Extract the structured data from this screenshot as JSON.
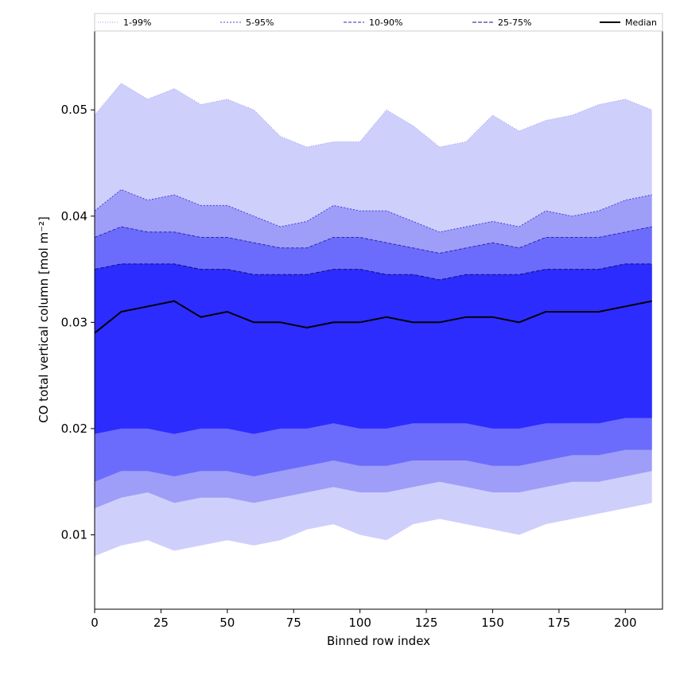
{
  "chart_data": {
    "type": "area",
    "title": "",
    "xlabel": "Binned row index",
    "ylabel": "CO total vertical column [mol m⁻²]",
    "xlim": [
      0,
      214
    ],
    "ylim": [
      0.003,
      0.0575
    ],
    "x_ticks": [
      0,
      25,
      50,
      75,
      100,
      125,
      150,
      175,
      200
    ],
    "x_tick_labels": [
      "0",
      "25",
      "50",
      "75",
      "100",
      "125",
      "150",
      "175",
      "200"
    ],
    "y_ticks": [
      0.01,
      0.02,
      0.03,
      0.04,
      0.05
    ],
    "y_tick_labels": [
      "0.01",
      "0.02",
      "0.03",
      "0.04",
      "0.05"
    ],
    "grid": false,
    "legend_position": "top (above plot, single row)",
    "x_start": 0,
    "x_step": 10,
    "bands": [
      {
        "name": "1-99%",
        "fill": "#cfcffc",
        "line": "#9a9af0",
        "upper": [
          0.0495,
          0.0525,
          0.051,
          0.052,
          0.0505,
          0.051,
          0.05,
          0.0475,
          0.0465,
          0.047,
          0.047,
          0.05,
          0.0485,
          0.0465,
          0.047,
          0.0495,
          0.048,
          0.049,
          0.0495,
          0.0505,
          0.051,
          0.05
        ],
        "lower": [
          0.008,
          0.009,
          0.0095,
          0.0085,
          0.009,
          0.0095,
          0.009,
          0.0095,
          0.0105,
          0.011,
          0.01,
          0.0095,
          0.011,
          0.0115,
          0.011,
          0.0105,
          0.01,
          0.011,
          0.0115,
          0.012,
          0.0125,
          0.013
        ]
      },
      {
        "name": "5-95%",
        "fill": "#9e9ef8",
        "line": "#4040e0",
        "upper": [
          0.0405,
          0.0425,
          0.0415,
          0.042,
          0.041,
          0.041,
          0.04,
          0.039,
          0.0395,
          0.041,
          0.0405,
          0.0405,
          0.0395,
          0.0385,
          0.039,
          0.0395,
          0.039,
          0.0405,
          0.04,
          0.0405,
          0.0415,
          0.042
        ],
        "lower": [
          0.0125,
          0.0135,
          0.014,
          0.013,
          0.0135,
          0.0135,
          0.013,
          0.0135,
          0.014,
          0.0145,
          0.014,
          0.014,
          0.0145,
          0.015,
          0.0145,
          0.014,
          0.014,
          0.0145,
          0.015,
          0.015,
          0.0155,
          0.016
        ]
      },
      {
        "name": "10-90%",
        "fill": "#6c6cfc",
        "line": "#2a2ab8",
        "upper": [
          0.038,
          0.039,
          0.0385,
          0.0385,
          0.038,
          0.038,
          0.0375,
          0.037,
          0.037,
          0.038,
          0.038,
          0.0375,
          0.037,
          0.0365,
          0.037,
          0.0375,
          0.037,
          0.038,
          0.038,
          0.038,
          0.0385,
          0.039
        ],
        "lower": [
          0.015,
          0.016,
          0.016,
          0.0155,
          0.016,
          0.016,
          0.0155,
          0.016,
          0.0165,
          0.017,
          0.0165,
          0.0165,
          0.017,
          0.017,
          0.017,
          0.0165,
          0.0165,
          0.017,
          0.0175,
          0.0175,
          0.018,
          0.018
        ]
      },
      {
        "name": "25-75%",
        "fill": "#2c2cff",
        "line": "#0f0f80",
        "upper": [
          0.035,
          0.0355,
          0.0355,
          0.0355,
          0.035,
          0.035,
          0.0345,
          0.0345,
          0.0345,
          0.035,
          0.035,
          0.0345,
          0.0345,
          0.034,
          0.0345,
          0.0345,
          0.0345,
          0.035,
          0.035,
          0.035,
          0.0355,
          0.0355
        ],
        "lower": [
          0.0195,
          0.02,
          0.02,
          0.0195,
          0.02,
          0.02,
          0.0195,
          0.02,
          0.02,
          0.0205,
          0.02,
          0.02,
          0.0205,
          0.0205,
          0.0205,
          0.02,
          0.02,
          0.0205,
          0.0205,
          0.0205,
          0.021,
          0.021
        ]
      }
    ],
    "median": {
      "name": "Median",
      "color": "#000000",
      "values": [
        0.029,
        0.031,
        0.0315,
        0.032,
        0.0305,
        0.031,
        0.03,
        0.03,
        0.0295,
        0.03,
        0.03,
        0.0305,
        0.03,
        0.03,
        0.0305,
        0.0305,
        0.03,
        0.031,
        0.031,
        0.031,
        0.0315,
        0.032
      ]
    }
  }
}
